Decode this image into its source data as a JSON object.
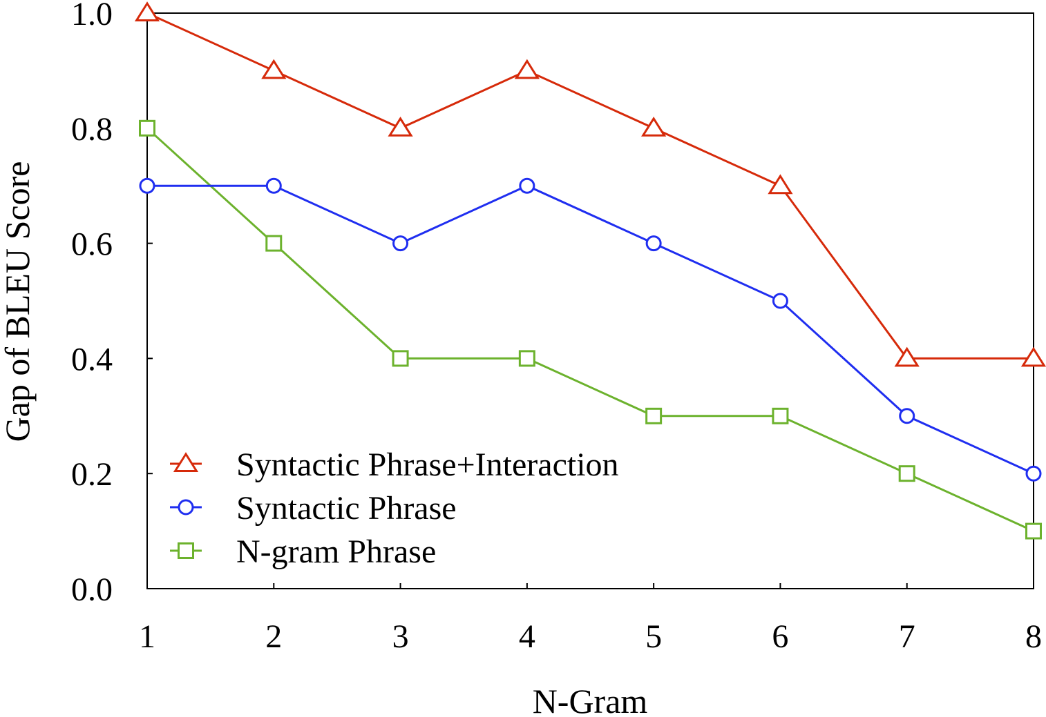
{
  "chart_data": {
    "type": "line",
    "title": "",
    "xlabel": "N-Gram",
    "ylabel": "Gap of BLEU Score",
    "x": [
      1,
      2,
      3,
      4,
      5,
      6,
      7,
      8
    ],
    "xlim": [
      1,
      8
    ],
    "ylim": [
      0,
      1.0
    ],
    "x_ticks": [
      "1",
      "2",
      "3",
      "4",
      "5",
      "6",
      "7",
      "8"
    ],
    "y_ticks": [
      "0.0",
      "0.2",
      "0.4",
      "0.6",
      "0.8",
      "1.0"
    ],
    "grid": false,
    "legend_position": "bottom-left",
    "series": [
      {
        "name": "Syntactic Phrase+Interaction",
        "marker": "triangle",
        "color": "#d62a0a",
        "values": [
          1.0,
          0.9,
          0.8,
          0.9,
          0.8,
          0.7,
          0.4,
          0.4
        ]
      },
      {
        "name": "Syntactic Phrase",
        "marker": "circle",
        "color": "#1f2ef0",
        "values": [
          0.7,
          0.7,
          0.6,
          0.7,
          0.6,
          0.5,
          0.3,
          0.2
        ]
      },
      {
        "name": "N-gram Phrase",
        "marker": "square",
        "color": "#6cb22d",
        "values": [
          0.8,
          0.6,
          0.4,
          0.4,
          0.3,
          0.3,
          0.2,
          0.1
        ]
      }
    ]
  }
}
